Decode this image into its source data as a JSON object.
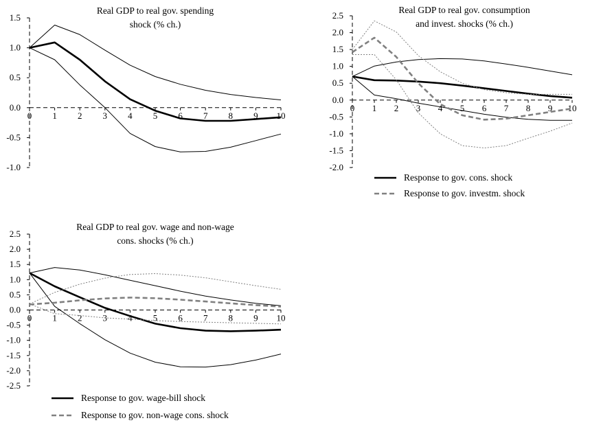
{
  "chart_data": [
    {
      "type": "line",
      "title": [
        "Real GDP to real gov. spending",
        "shock (% ch.)"
      ],
      "x": [
        0,
        1,
        2,
        3,
        4,
        5,
        6,
        7,
        8,
        9,
        10
      ],
      "ylim": [
        -1.0,
        1.5
      ],
      "yticks": [
        -1.0,
        -0.5,
        0.0,
        0.5,
        1.0,
        1.5
      ],
      "ytick_labels": [
        "-1.0",
        "-0.5",
        "0.0",
        "0.5",
        "1.0",
        "1.5"
      ],
      "xtick_labels": [
        "0",
        "1",
        "2",
        "3",
        "4",
        "5",
        "6",
        "7",
        "8",
        "9",
        "10"
      ],
      "legend": [],
      "series": [
        {
          "role": "mean",
          "color": "#000000",
          "dash": "",
          "width": 2.6,
          "values": [
            1.0,
            1.09,
            0.8,
            0.44,
            0.14,
            -0.05,
            -0.18,
            -0.22,
            -0.22,
            -0.19,
            -0.16
          ]
        },
        {
          "role": "band",
          "color": "#000000",
          "dash": "",
          "width": 1,
          "values": [
            1.0,
            1.38,
            1.22,
            0.96,
            0.71,
            0.52,
            0.39,
            0.29,
            0.22,
            0.17,
            0.13
          ]
        },
        {
          "role": "band",
          "color": "#000000",
          "dash": "",
          "width": 1,
          "values": [
            1.0,
            0.8,
            0.38,
            0.0,
            -0.43,
            -0.65,
            -0.74,
            -0.73,
            -0.66,
            -0.55,
            -0.44
          ]
        }
      ]
    },
    {
      "type": "line",
      "title": [
        "Real GDP to real gov. consumption",
        "and invest. shocks (% ch.)"
      ],
      "x": [
        0,
        1,
        2,
        3,
        4,
        5,
        6,
        7,
        8,
        9,
        10
      ],
      "ylim": [
        -2.0,
        2.5
      ],
      "yticks": [
        -2.0,
        -1.5,
        -1.0,
        -0.5,
        0.0,
        0.5,
        1.0,
        1.5,
        2.0,
        2.5
      ],
      "ytick_labels": [
        "-2.0",
        "-1.5",
        "-1.0",
        "-0.5",
        "0.0",
        "0.5",
        "1.0",
        "1.5",
        "2.0",
        "2.5"
      ],
      "xtick_labels": [
        "0",
        "1",
        "2",
        "3",
        "4",
        "5",
        "6",
        "7",
        "8",
        "9",
        "10"
      ],
      "legend": [
        {
          "label": "Response to gov. cons. shock",
          "color": "#000000",
          "dash": ""
        },
        {
          "label": "Response to gov. investm. shock",
          "color": "#808080",
          "dash": "7,4"
        }
      ],
      "series": [
        {
          "role": "mean",
          "name": "Response to gov. cons. shock",
          "color": "#000000",
          "dash": "",
          "width": 2.6,
          "values": [
            0.7,
            0.59,
            0.58,
            0.55,
            0.5,
            0.43,
            0.35,
            0.27,
            0.19,
            0.12,
            0.07
          ]
        },
        {
          "role": "band",
          "color": "#000000",
          "dash": "",
          "width": 1,
          "values": [
            0.7,
            1.01,
            1.13,
            1.2,
            1.23,
            1.22,
            1.16,
            1.07,
            0.97,
            0.86,
            0.75
          ]
        },
        {
          "role": "band",
          "color": "#000000",
          "dash": "",
          "width": 1,
          "values": [
            0.7,
            0.15,
            0.04,
            -0.09,
            -0.2,
            -0.31,
            -0.42,
            -0.51,
            -0.57,
            -0.6,
            -0.6
          ]
        },
        {
          "role": "mean",
          "name": "Response to gov. investm. shock",
          "color": "#808080",
          "dash": "7,4",
          "width": 2.6,
          "values": [
            1.42,
            1.85,
            1.28,
            0.5,
            -0.12,
            -0.45,
            -0.58,
            -0.55,
            -0.45,
            -0.35,
            -0.25
          ]
        },
        {
          "role": "band",
          "color": "#808080",
          "dash": "2,2",
          "width": 1,
          "values": [
            1.5,
            2.35,
            2.02,
            1.32,
            0.84,
            0.5,
            0.31,
            0.22,
            0.17,
            0.17,
            0.17
          ]
        },
        {
          "role": "band",
          "color": "#808080",
          "dash": "2,2",
          "width": 1,
          "values": [
            1.35,
            1.35,
            0.6,
            -0.38,
            -1.0,
            -1.35,
            -1.42,
            -1.35,
            -1.13,
            -0.92,
            -0.68
          ]
        }
      ]
    },
    {
      "type": "line",
      "title": [
        "Real GDP to real gov. wage and non-wage",
        "cons. shocks  (% ch.)"
      ],
      "x": [
        0,
        1,
        2,
        3,
        4,
        5,
        6,
        7,
        8,
        9,
        10
      ],
      "ylim": [
        -2.5,
        2.5
      ],
      "yticks": [
        -2.5,
        -2.0,
        -1.5,
        -1.0,
        -0.5,
        0.0,
        0.5,
        1.0,
        1.5,
        2.0,
        2.5
      ],
      "ytick_labels": [
        "-2.5",
        "-2.0",
        "-1.5",
        "-1.0",
        "-0.5",
        "0.0",
        "0.5",
        "1.0",
        "1.5",
        "2.0",
        "2.5"
      ],
      "xtick_labels": [
        "0",
        "1",
        "2",
        "3",
        "4",
        "5",
        "6",
        "7",
        "8",
        "9",
        "10"
      ],
      "legend": [
        {
          "label": "Response to gov. wage-bill shock",
          "color": "#000000",
          "dash": ""
        },
        {
          "label": "Response to gov. non-wage cons. shock",
          "color": "#808080",
          "dash": "7,4"
        }
      ],
      "series": [
        {
          "role": "mean",
          "name": "Response to gov. wage-bill shock",
          "color": "#000000",
          "dash": "",
          "width": 2.6,
          "values": [
            1.22,
            0.78,
            0.42,
            0.07,
            -0.2,
            -0.45,
            -0.6,
            -0.68,
            -0.7,
            -0.68,
            -0.65
          ]
        },
        {
          "role": "band",
          "color": "#000000",
          "dash": "",
          "width": 1,
          "values": [
            1.22,
            1.4,
            1.32,
            1.16,
            0.98,
            0.8,
            0.62,
            0.46,
            0.33,
            0.22,
            0.14
          ]
        },
        {
          "role": "band",
          "color": "#000000",
          "dash": "",
          "width": 1,
          "values": [
            1.22,
            0.12,
            -0.45,
            -0.98,
            -1.42,
            -1.72,
            -1.87,
            -1.88,
            -1.8,
            -1.65,
            -1.45
          ]
        },
        {
          "role": "mean",
          "name": "Response to gov. non-wage cons. shock",
          "color": "#808080",
          "dash": "7,4",
          "width": 2.6,
          "values": [
            0.18,
            0.24,
            0.32,
            0.38,
            0.41,
            0.39,
            0.34,
            0.28,
            0.22,
            0.16,
            0.11
          ]
        },
        {
          "role": "band",
          "color": "#808080",
          "dash": "2,2",
          "width": 1,
          "values": [
            0.2,
            0.58,
            0.85,
            1.05,
            1.17,
            1.2,
            1.15,
            1.06,
            0.93,
            0.8,
            0.68
          ]
        },
        {
          "role": "band",
          "color": "#808080",
          "dash": "2,2",
          "width": 1,
          "values": [
            0.2,
            -0.12,
            -0.18,
            -0.26,
            -0.3,
            -0.35,
            -0.38,
            -0.4,
            -0.42,
            -0.44,
            -0.46
          ]
        }
      ]
    }
  ]
}
